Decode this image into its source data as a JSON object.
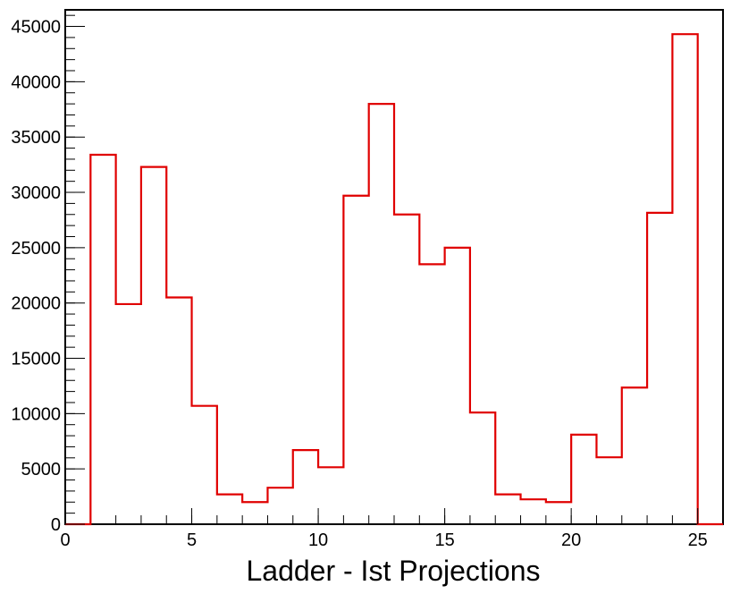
{
  "chart_data": {
    "type": "bar",
    "style": "step-histogram",
    "title": "",
    "xlabel": "Ladder - Ist Projections",
    "ylabel": "",
    "xlim": [
      0,
      26
    ],
    "ylim": [
      0,
      46500
    ],
    "bin_edges": [
      0,
      1,
      2,
      3,
      4,
      5,
      6,
      7,
      8,
      9,
      10,
      11,
      12,
      13,
      14,
      15,
      16,
      17,
      18,
      19,
      20,
      21,
      22,
      23,
      24,
      25,
      26
    ],
    "values": [
      0,
      33400,
      19900,
      32300,
      20500,
      10700,
      2700,
      2000,
      3300,
      6700,
      5150,
      29700,
      38000,
      28000,
      23500,
      25000,
      10100,
      2700,
      2250,
      2000,
      8100,
      6050,
      12350,
      28150,
      44300,
      0
    ],
    "x_ticks": [
      0,
      5,
      10,
      15,
      20,
      25
    ],
    "x_tick_labels": [
      "0",
      "5",
      "10",
      "15",
      "20",
      "25"
    ],
    "y_ticks": [
      0,
      5000,
      10000,
      15000,
      20000,
      25000,
      30000,
      35000,
      40000,
      45000
    ],
    "y_tick_labels": [
      "0",
      "5000",
      "10000",
      "15000",
      "20000",
      "25000",
      "30000",
      "35000",
      "40000",
      "45000"
    ],
    "grid": false,
    "legend": "none",
    "line_color": "#e00000",
    "axis_color": "#000000"
  }
}
